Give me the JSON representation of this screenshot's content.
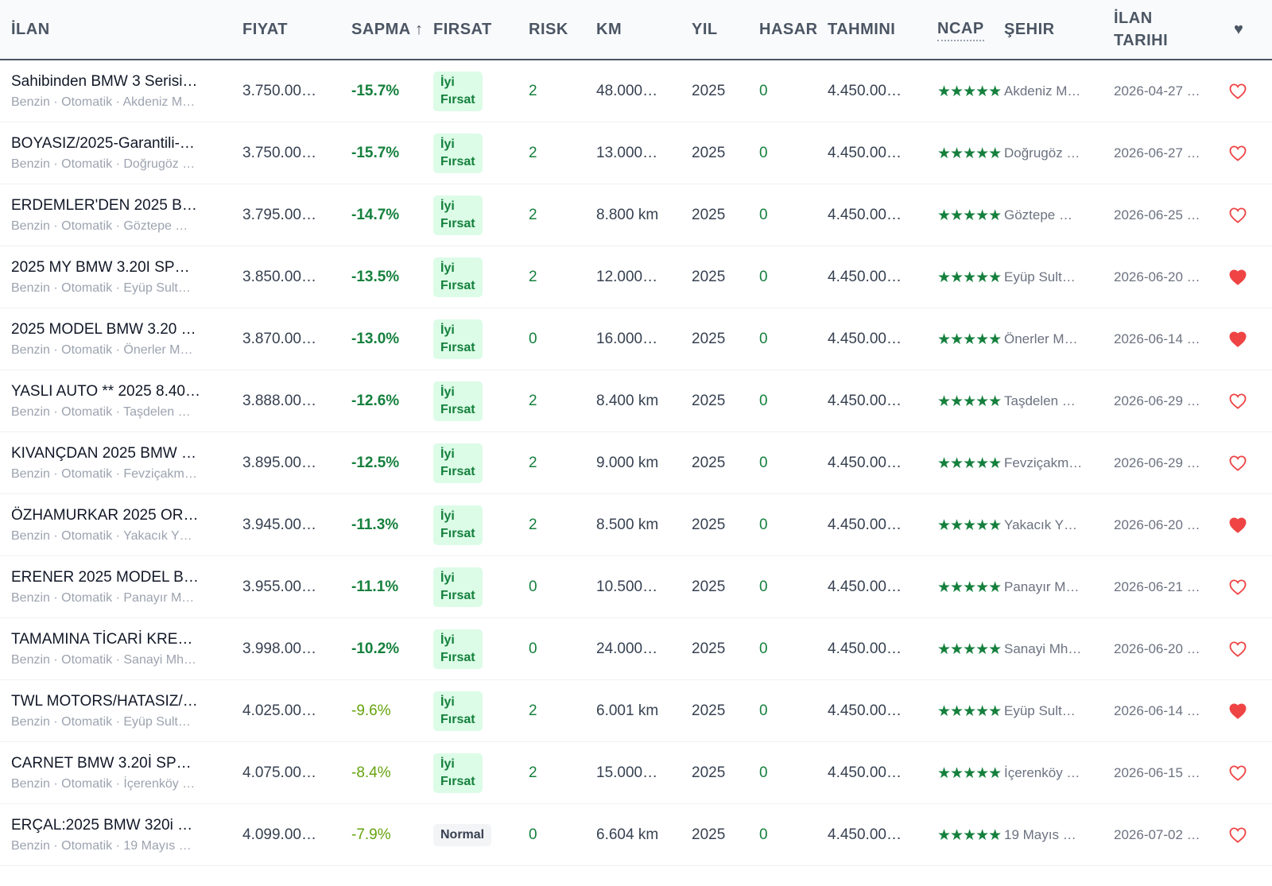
{
  "header": {
    "columns": [
      "İLAN",
      "FIYAT",
      "SAPMA ↑",
      "FIRSAT",
      "RISK",
      "KM",
      "YIL",
      "HASAR",
      "TAHMINI",
      "NCAP",
      "ŞEHIR",
      "İLAN TARIHI",
      "♥"
    ]
  },
  "styles": {
    "good_badge_bg": "#dcfce7",
    "good_badge_color": "#15803d",
    "normal_badge_bg": "#f3f4f6",
    "normal_badge_color": "#374151",
    "strong_color": "#15803d",
    "mild_color": "#65a30d",
    "heart_color": "#ef4444"
  },
  "rows": [
    {
      "title": "Sahibinden BMW 3 Serisi…",
      "sub": "Benzin · Otomatik · Akdeniz M…",
      "fiyat": "3.750.00…",
      "sapma": "-15.7%",
      "sapma_color": "#15803d",
      "firsat": "İyi Fırsat",
      "firsat_good": true,
      "risk": "2",
      "km": "48.000…",
      "yil": "2025",
      "hasar": "0",
      "tahmini": "4.450.00…",
      "ncap": "★★★★★",
      "sehir": "Akdeniz M…",
      "tarih": "2026-04-27 …",
      "fav": false
    },
    {
      "title": "BOYASIZ/2025-Garantili-…",
      "sub": "Benzin · Otomatik · Doğrugöz …",
      "fiyat": "3.750.00…",
      "sapma": "-15.7%",
      "sapma_color": "#15803d",
      "firsat": "İyi Fırsat",
      "firsat_good": true,
      "risk": "2",
      "km": "13.000…",
      "yil": "2025",
      "hasar": "0",
      "tahmini": "4.450.00…",
      "ncap": "★★★★★",
      "sehir": "Doğrugöz …",
      "tarih": "2026-06-27 …",
      "fav": false
    },
    {
      "title": "ERDEMLER'DEN 2025 B…",
      "sub": "Benzin · Otomatik · Göztepe …",
      "fiyat": "3.795.00…",
      "sapma": "-14.7%",
      "sapma_color": "#15803d",
      "firsat": "İyi Fırsat",
      "firsat_good": true,
      "risk": "2",
      "km": "8.800 km",
      "yil": "2025",
      "hasar": "0",
      "tahmini": "4.450.00…",
      "ncap": "★★★★★",
      "sehir": "Göztepe …",
      "tarih": "2026-06-25 …",
      "fav": false
    },
    {
      "title": "2025 MY BMW 3.20I SP…",
      "sub": "Benzin · Otomatik · Eyüp Sult…",
      "fiyat": "3.850.00…",
      "sapma": "-13.5%",
      "sapma_color": "#15803d",
      "firsat": "İyi Fırsat",
      "firsat_good": true,
      "risk": "2",
      "km": "12.000…",
      "yil": "2025",
      "hasar": "0",
      "tahmini": "4.450.00…",
      "ncap": "★★★★★",
      "sehir": "Eyüp Sult…",
      "tarih": "2026-06-20 …",
      "fav": true
    },
    {
      "title": "2025 MODEL BMW 3.20 …",
      "sub": "Benzin · Otomatik · Önerler M…",
      "fiyat": "3.870.00…",
      "sapma": "-13.0%",
      "sapma_color": "#15803d",
      "firsat": "İyi Fırsat",
      "firsat_good": true,
      "risk": "0",
      "km": "16.000…",
      "yil": "2025",
      "hasar": "0",
      "tahmini": "4.450.00…",
      "ncap": "★★★★★",
      "sehir": "Önerler M…",
      "tarih": "2026-06-14 …",
      "fav": true
    },
    {
      "title": "YASLI AUTO ** 2025 8.40…",
      "sub": "Benzin · Otomatik · Taşdelen …",
      "fiyat": "3.888.00…",
      "sapma": "-12.6%",
      "sapma_color": "#15803d",
      "firsat": "İyi Fırsat",
      "firsat_good": true,
      "risk": "2",
      "km": "8.400 km",
      "yil": "2025",
      "hasar": "0",
      "tahmini": "4.450.00…",
      "ncap": "★★★★★",
      "sehir": "Taşdelen …",
      "tarih": "2026-06-29 …",
      "fav": false
    },
    {
      "title": "KIVANÇDAN 2025 BMW …",
      "sub": "Benzin · Otomatik · Fevziçakm…",
      "fiyat": "3.895.00…",
      "sapma": "-12.5%",
      "sapma_color": "#15803d",
      "firsat": "İyi Fırsat",
      "firsat_good": true,
      "risk": "2",
      "km": "9.000 km",
      "yil": "2025",
      "hasar": "0",
      "tahmini": "4.450.00…",
      "ncap": "★★★★★",
      "sehir": "Fevziçakm…",
      "tarih": "2026-06-29 …",
      "fav": false
    },
    {
      "title": "ÖZHAMURKAR 2025 OR…",
      "sub": "Benzin · Otomatik · Yakacık Y…",
      "fiyat": "3.945.00…",
      "sapma": "-11.3%",
      "sapma_color": "#15803d",
      "firsat": "İyi Fırsat",
      "firsat_good": true,
      "risk": "2",
      "km": "8.500 km",
      "yil": "2025",
      "hasar": "0",
      "tahmini": "4.450.00…",
      "ncap": "★★★★★",
      "sehir": "Yakacık Y…",
      "tarih": "2026-06-20 …",
      "fav": true
    },
    {
      "title": "ERENER 2025 MODEL B…",
      "sub": "Benzin · Otomatik · Panayır M…",
      "fiyat": "3.955.00…",
      "sapma": "-11.1%",
      "sapma_color": "#15803d",
      "firsat": "İyi Fırsat",
      "firsat_good": true,
      "risk": "0",
      "km": "10.500…",
      "yil": "2025",
      "hasar": "0",
      "tahmini": "4.450.00…",
      "ncap": "★★★★★",
      "sehir": "Panayır M…",
      "tarih": "2026-06-21 …",
      "fav": false
    },
    {
      "title": "TAMAMINA TİCARİ KRE…",
      "sub": "Benzin · Otomatik · Sanayi Mh…",
      "fiyat": "3.998.00…",
      "sapma": "-10.2%",
      "sapma_color": "#15803d",
      "firsat": "İyi Fırsat",
      "firsat_good": true,
      "risk": "0",
      "km": "24.000…",
      "yil": "2025",
      "hasar": "0",
      "tahmini": "4.450.00…",
      "ncap": "★★★★★",
      "sehir": "Sanayi Mh…",
      "tarih": "2026-06-20 …",
      "fav": false
    },
    {
      "title": "TWL MOTORS/HATASIZ/…",
      "sub": "Benzin · Otomatik · Eyüp Sult…",
      "fiyat": "4.025.00…",
      "sapma": "-9.6%",
      "sapma_color": "#65a30d",
      "firsat": "İyi Fırsat",
      "firsat_good": true,
      "risk": "2",
      "km": "6.001 km",
      "yil": "2025",
      "hasar": "0",
      "tahmini": "4.450.00…",
      "ncap": "★★★★★",
      "sehir": "Eyüp Sult…",
      "tarih": "2026-06-14 …",
      "fav": true
    },
    {
      "title": "CARNET BMW 3.20İ SP…",
      "sub": "Benzin · Otomatik · İçerenköy …",
      "fiyat": "4.075.00…",
      "sapma": "-8.4%",
      "sapma_color": "#65a30d",
      "firsat": "İyi Fırsat",
      "firsat_good": true,
      "risk": "2",
      "km": "15.000…",
      "yil": "2025",
      "hasar": "0",
      "tahmini": "4.450.00…",
      "ncap": "★★★★★",
      "sehir": "İçerenköy …",
      "tarih": "2026-06-15 …",
      "fav": false
    },
    {
      "title": "ERÇAL:2025 BMW 320i …",
      "sub": "Benzin · Otomatik · 19 Mayıs …",
      "fiyat": "4.099.00…",
      "sapma": "-7.9%",
      "sapma_color": "#65a30d",
      "firsat": "Normal",
      "firsat_good": false,
      "risk": "0",
      "km": "6.604 km",
      "yil": "2025",
      "hasar": "0",
      "tahmini": "4.450.00…",
      "ncap": "★★★★★",
      "sehir": "19 Mayıs …",
      "tarih": "2026-07-02 …",
      "fav": false
    }
  ]
}
